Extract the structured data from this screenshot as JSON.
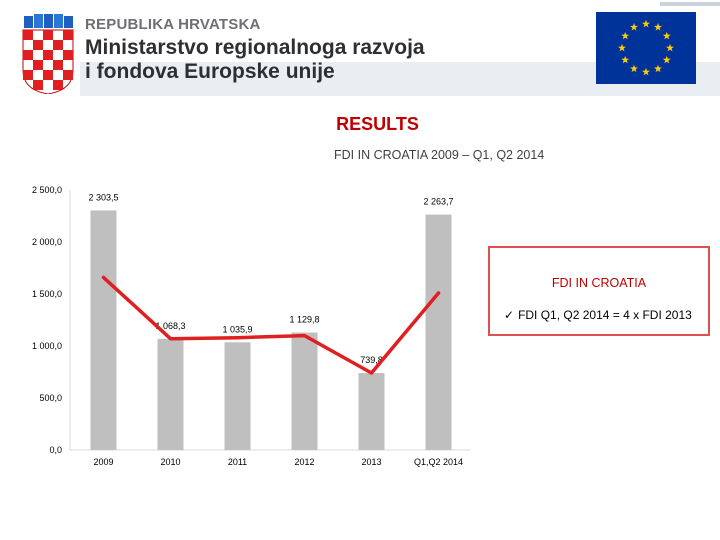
{
  "header": {
    "country": "REPUBLIKA HRVATSKA",
    "ministry_line1": "Ministarstvo regionalnoga razvoja",
    "ministry_line2": "i fondova Europske unije"
  },
  "colors": {
    "accent": "#c00000",
    "bar": "#bfbfbf",
    "line": "#e02020",
    "eu_blue": "#003399",
    "eu_star": "#ffcc00"
  },
  "heading": "RESULTS",
  "chart_data": {
    "type": "bar",
    "title": "FDI IN CROATIA  2009 –  Q1, Q2 2014",
    "categories": [
      "2009",
      "2010",
      "2011",
      "2012",
      "2013",
      "Q1,Q2 2014"
    ],
    "values": [
      2303.5,
      1068.3,
      1035.9,
      1129.8,
      739.8,
      2263.7
    ],
    "value_labels": [
      "2 303,5",
      "1 068,3",
      "1 035,9",
      "1 129,8",
      "739,8",
      "2 263,7"
    ],
    "yticks": [
      "0,0",
      "500,0",
      "1 000,0",
      "1 500,0",
      "2 000,0",
      "2 500,0"
    ],
    "ylim": [
      0,
      2500
    ],
    "grid": false,
    "overlay_line": {
      "type": "line",
      "description": "trend line over 2009–Q1,Q2 2014"
    }
  },
  "callout": {
    "title": "FDI IN CROATIA",
    "item": "FDI Q1, Q2 2014 = 4 x FDI 2013"
  }
}
